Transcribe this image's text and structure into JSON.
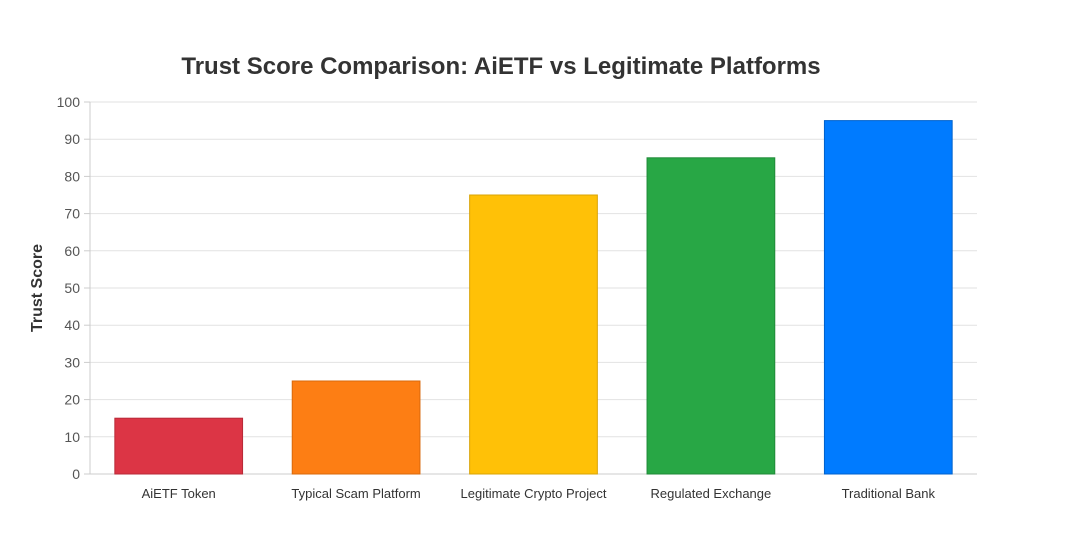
{
  "chart_data": {
    "type": "bar",
    "title": "Trust Score Comparison: AiETF vs Legitimate Platforms",
    "xlabel": "",
    "ylabel": "Trust Score",
    "ylim": [
      0,
      100
    ],
    "yticks": [
      "0",
      "10",
      "20",
      "30",
      "40",
      "50",
      "60",
      "70",
      "80",
      "90",
      "100"
    ],
    "grid": true,
    "categories": [
      "AiETF Token",
      "Typical Scam Platform",
      "Legitimate Crypto Project",
      "Regulated Exchange",
      "Traditional Bank"
    ],
    "values": [
      15,
      25,
      75,
      85,
      95
    ],
    "colors": [
      "#dc3545",
      "#fd7e14",
      "#ffc107",
      "#28a745",
      "#007bff"
    ],
    "border_colors": [
      "#b82a38",
      "#d9690c",
      "#d9a406",
      "#1f8a38",
      "#0062cc"
    ]
  }
}
